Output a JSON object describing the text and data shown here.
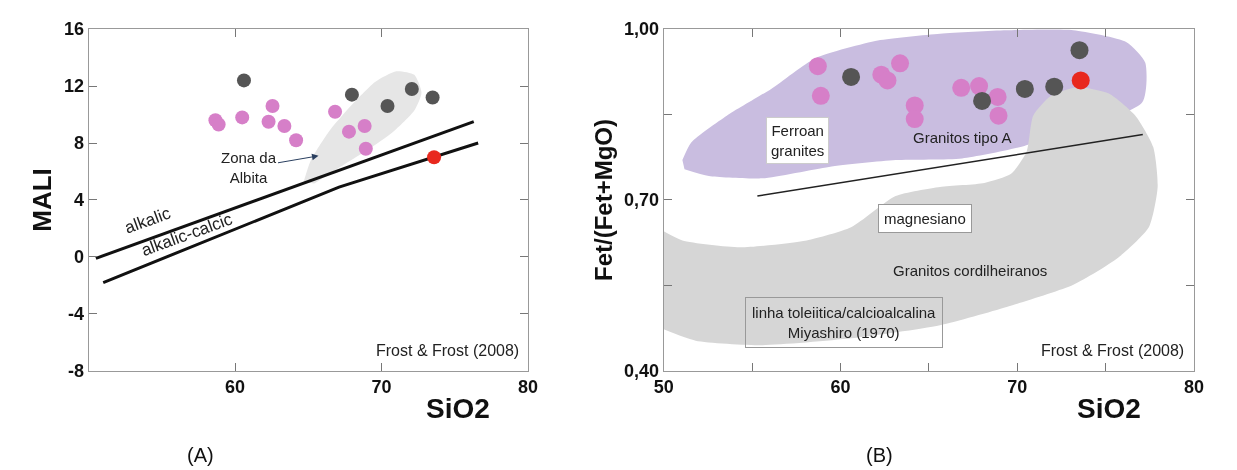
{
  "chart_data": [
    {
      "type": "scatter",
      "ylabel": "MALI",
      "xlabel": "SiO2",
      "xlim": [
        50,
        80
      ],
      "ylim": [
        -8,
        16
      ],
      "xticks": [
        {
          "value": 50,
          "label": null
        },
        60,
        70,
        80
      ],
      "yticks": [
        -8,
        -4,
        0,
        4,
        8,
        12,
        16
      ],
      "series": [
        {
          "type": "area",
          "color": "#e6e6e6",
          "x": [
            64.68,
            65.17,
            66.39,
            67.85,
            69.56,
            71.02,
            72.24,
            72.73,
            72.24,
            70.78,
            69.07,
            67.12,
            65.41
          ],
          "values": [
            5.27,
            6.78,
            8.78,
            10.54,
            12.29,
            13.04,
            12.79,
            11.54,
            10.29,
            8.78,
            7.53,
            6.28,
            5.15
          ]
        },
        {
          "type": "line",
          "color": "#111111",
          "x": [
            50.5,
            76.3
          ],
          "values": [
            -0.1,
            9.5
          ]
        },
        {
          "type": "line",
          "color": "#111111",
          "x": [
            51.0,
            67.1,
            76.6
          ],
          "values": [
            -1.8,
            4.9,
            8.0
          ]
        },
        {
          "marker": "circle",
          "color": "#d67fc8",
          "x": [
            58.66,
            58.88,
            60.49,
            62.56,
            62.29,
            63.37,
            64.17,
            66.83,
            67.78,
            68.85,
            68.93
          ],
          "values": [
            9.6,
            9.3,
            9.8,
            10.6,
            9.5,
            9.2,
            8.2,
            10.2,
            8.8,
            9.2,
            7.6
          ]
        },
        {
          "marker": "circle",
          "color": "#555555",
          "x": [
            60.61,
            67.98,
            70.41,
            72.07,
            73.49
          ],
          "values": [
            12.4,
            11.4,
            10.6,
            11.8,
            11.2
          ]
        },
        {
          "marker": "circle",
          "color": "#e8281e",
          "x": [
            73.59
          ],
          "values": [
            7.0
          ]
        }
      ],
      "annotations": [
        {
          "text": "Zona da\nAlbita",
          "x": 65.7,
          "y": 7.1
        },
        "alkalic",
        "alkalic-calcic",
        "Frost & Frost (2008)",
        "(A)"
      ]
    },
    {
      "type": "scatter",
      "ylabel": "Fet/(Fet+MgO)",
      "xlabel": "SiO2",
      "xlim": [
        50,
        80
      ],
      "ylim": [
        0.4,
        1.0
      ],
      "xticks": [
        50,
        {
          "value": 55,
          "label": null
        },
        60,
        {
          "value": 65,
          "label": null
        },
        70,
        {
          "value": 75,
          "label": null
        },
        80
      ],
      "yticks": [
        {
          "value": 0.4,
          "label": "0,40"
        },
        {
          "value": 0.55,
          "label": null
        },
        {
          "value": 0.7,
          "label": "0,70"
        },
        {
          "value": 0.85,
          "label": null
        },
        {
          "value": 1.0,
          "label": "1,00"
        }
      ],
      "series": [
        {
          "type": "area",
          "color": "#c9bde0",
          "x": [
            51.06,
            51.56,
            53.57,
            56.08,
            58.59,
            62.11,
            65.63,
            69.4,
            73.17,
            76.18,
            77.24,
            77.06,
            70.4,
            66.88,
            63.12,
            59.35,
            55.58,
            52.56,
            51.18
          ],
          "values": [
            0.77,
            0.801,
            0.848,
            0.895,
            0.949,
            0.98,
            0.992,
            0.998,
            0.998,
            0.977,
            0.941,
            0.871,
            0.795,
            0.773,
            0.77,
            0.758,
            0.738,
            0.742,
            0.754
          ]
        },
        {
          "type": "area",
          "color": "#d6d6d6",
          "x": [
            50.0,
            51.06,
            54.32,
            58.09,
            60.6,
            63.12,
            65.63,
            68.14,
            69.65,
            70.53,
            70.9,
            71.91,
            73.42,
            75.18,
            76.68,
            77.69,
            77.94,
            77.44,
            75.68,
            73.17,
            69.4,
            65.63,
            60.6,
            55.58,
            51.81,
            50.0
          ],
          "values": [
            0.645,
            0.629,
            0.617,
            0.629,
            0.652,
            0.707,
            0.723,
            0.73,
            0.746,
            0.785,
            0.848,
            0.883,
            0.898,
            0.887,
            0.848,
            0.793,
            0.723,
            0.652,
            0.598,
            0.551,
            0.512,
            0.48,
            0.457,
            0.445,
            0.453,
            0.473
          ]
        },
        {
          "type": "line",
          "color": "#222222",
          "x": [
            55.3,
            77.1
          ],
          "values": [
            0.707,
            0.815
          ]
        },
        {
          "marker": "circle",
          "color": "#d67fc8",
          "x": [
            58.72,
            58.89,
            62.31,
            62.66,
            63.37,
            64.2,
            64.2,
            66.83,
            67.84,
            68.89,
            68.94
          ],
          "values": [
            0.935,
            0.883,
            0.92,
            0.91,
            0.94,
            0.866,
            0.842,
            0.897,
            0.9,
            0.881,
            0.848
          ]
        },
        {
          "marker": "circle",
          "color": "#555555",
          "x": [
            60.6,
            68.01,
            70.43,
            72.09,
            73.52
          ],
          "values": [
            0.916,
            0.874,
            0.895,
            0.899,
            0.963
          ]
        },
        {
          "marker": "circle",
          "color": "#e8281e",
          "x": [
            73.59
          ],
          "values": [
            0.91
          ]
        }
      ],
      "annotations": [
        "Ferroan\ngranites",
        "Granitos tipo A",
        "magnesiano",
        "Granitos cordilheiranos",
        "linha toleiitica/calcioalcalina\nMiyashiro (1970)",
        "Frost & Frost (2008)",
        "(B)"
      ]
    }
  ]
}
